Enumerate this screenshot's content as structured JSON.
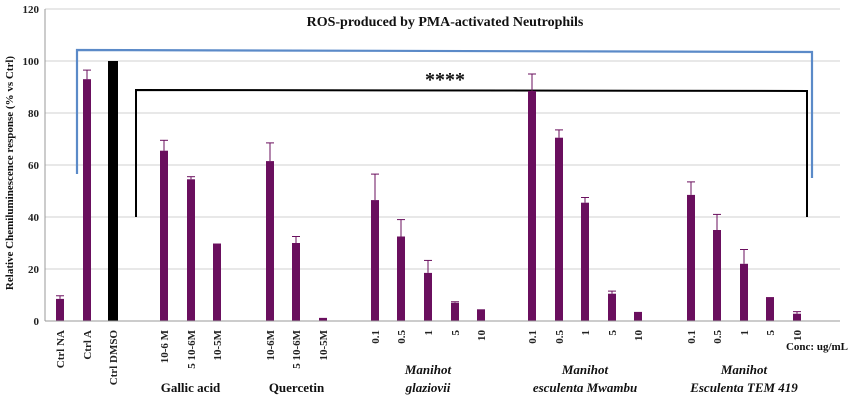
{
  "chart_data": {
    "type": "bar",
    "title": "ROS-produced by PMA-activated Neutrophils",
    "ylabel": "Relative Chemiluminescence  response (% vs Ctrl)",
    "ylim": [
      0,
      120
    ],
    "yticks": [
      0,
      20,
      40,
      60,
      80,
      100,
      120
    ],
    "grid": true,
    "conc_label": "Conc: ug/mL",
    "significance": "****",
    "bar_color": "#6a0f5e",
    "dmso_color": "#000000",
    "bracket_color": "#5b8ac8",
    "categories": [
      "Ctrl NA",
      "Ctrl A",
      "Ctrl DMSO",
      "10-6 M",
      "5 10-6M",
      "10-5M",
      "10-6M",
      "5 10-6M",
      "10-5M",
      "0.1",
      "0.5",
      "1",
      "5",
      "10",
      "0.1",
      "0.5",
      "1",
      "5",
      "10",
      "0.1",
      "0.5",
      "1",
      "5",
      "10"
    ],
    "values": [
      8.5,
      93,
      100,
      65.5,
      54.5,
      29.8,
      61.5,
      30,
      1.2,
      46.5,
      32.5,
      18.5,
      7,
      4.5,
      88.5,
      70.5,
      45.5,
      10.5,
      3.5,
      48.5,
      35,
      22,
      9.2,
      2.8
    ],
    "errors": [
      1.2,
      3.5,
      0,
      4,
      1,
      0,
      7,
      2.5,
      0,
      10,
      6.5,
      4.8,
      0.4,
      0,
      6.5,
      3,
      2,
      1,
      0,
      5,
      6,
      5.5,
      0,
      0.8
    ],
    "groups": [
      {
        "lines": [
          "Gallic acid"
        ],
        "italic": false
      },
      {
        "lines": [
          "Quercetin"
        ],
        "italic": false
      },
      {
        "lines": [
          "Manihot",
          "glaziovii"
        ],
        "italic": true
      },
      {
        "lines": [
          "Manihot",
          "esculenta Mwambu"
        ],
        "italic": true
      },
      {
        "lines": [
          "Manihot",
          "Esculenta TEM 419"
        ],
        "italic": true
      }
    ]
  }
}
